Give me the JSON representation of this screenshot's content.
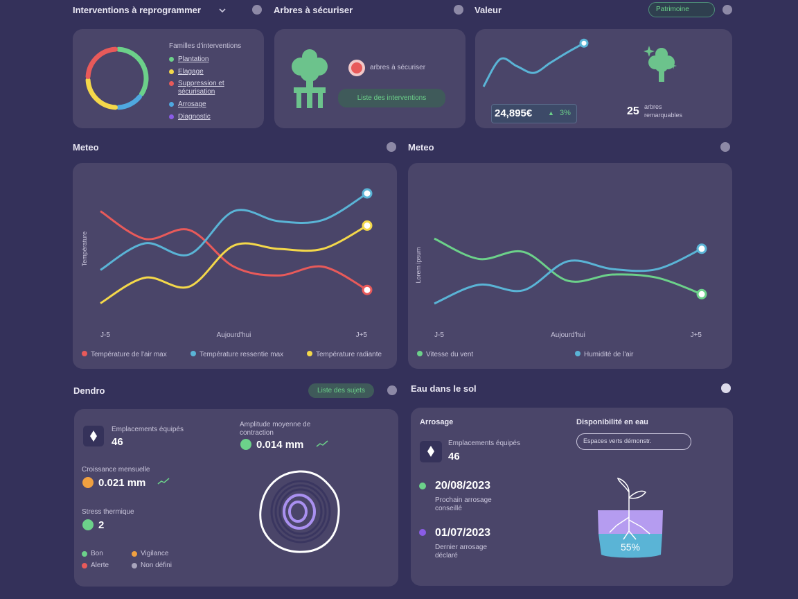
{
  "sections": {
    "interventions": {
      "title": "Interventions à reprogrammer",
      "legend_title": "Familles d'interventions"
    },
    "arbres": {
      "title": "Arbres à sécuriser",
      "label": "arbres à sécuriser",
      "button": "Liste des interventions"
    },
    "valeur": {
      "title": "Valeur",
      "dropdown": "Patrimoine",
      "amount": "24,895€",
      "change": "3%",
      "count": "25",
      "count_label": "arbres remarquables"
    },
    "meteo_left": {
      "title": "Meteo"
    },
    "meteo_right": {
      "title": "Meteo"
    },
    "dendro": {
      "title": "Dendro",
      "button": "Liste des sujets",
      "equipped_label": "Emplacements équipés",
      "equipped": "46",
      "amplitude_label": "Amplitude moyenne de contraction",
      "amplitude": "0.014 mm",
      "growth_label": "Croissance mensuelle",
      "growth": "0.021 mm",
      "stress_label": "Stress thermique",
      "stress": "2",
      "legend": [
        "Bon",
        "Vigilance",
        "Alerte",
        "Non défini"
      ]
    },
    "eau": {
      "title": "Eau dans le sol",
      "watering_title": "Arrosage",
      "availability_title": "Disponibilité en eau",
      "chip": "Espaces verts démonstr.",
      "equipped_label": "Emplacements équipés",
      "equipped": "46",
      "next_date": "20/08/2023",
      "next_label": "Prochain arrosage conseillé",
      "last_date": "01/07/2023",
      "last_label": "Dernier arrosage déclaré",
      "availability": "55%"
    }
  },
  "chart_data": [
    {
      "type": "pie",
      "categories": [
        "Plantation",
        "Elagage",
        "Suppression et sécurisation",
        "Arrosage",
        "Diagnostic"
      ],
      "values": [
        35,
        25,
        25,
        15,
        0
      ],
      "colors": [
        "#6cd18a",
        "#f4d84a",
        "#e85a5a",
        "#4fa8e0",
        "#8a5ce6"
      ]
    },
    {
      "type": "line",
      "categories": [
        null,
        null,
        null,
        null,
        null,
        null,
        null
      ],
      "ylim": [
        0,
        100
      ],
      "series": [
        {
          "color": "#5ab4d6",
          "values": [
            0,
            62,
            46,
            31,
            54,
            77,
            98
          ]
        }
      ]
    },
    {
      "type": "line",
      "y_label": "Température",
      "ylim": [
        0,
        100
      ],
      "categories": [
        "J-5",
        null,
        null,
        "Aujourd'hui",
        null,
        null,
        "J+5"
      ],
      "series": [
        {
          "name": "Température de l'air max",
          "color": "#e85a5a",
          "values": [
            84,
            59,
            67,
            34,
            26,
            34,
            13
          ]
        },
        {
          "name": "Température ressentie max",
          "color": "#5ab4d6",
          "values": [
            31,
            55,
            45,
            84,
            75,
            76,
            100
          ]
        },
        {
          "name": "Température radiante",
          "color": "#f4d84a",
          "values": [
            1,
            24,
            16,
            53,
            50,
            50,
            71
          ]
        }
      ]
    },
    {
      "type": "line",
      "y_label": "Lorem ipsum",
      "ylim": [
        0,
        100
      ],
      "categories": [
        "J-5",
        null,
        null,
        "Aujourd'hui",
        null,
        null,
        "J+5"
      ],
      "series": [
        {
          "name": "Vitesse du vent",
          "color": "#6cd18a",
          "values": [
            84,
            58,
            67,
            30,
            38,
            34,
            13
          ]
        },
        {
          "name": "Humidité de l'air",
          "color": "#5ab4d6",
          "values": [
            1,
            25,
            18,
            55,
            45,
            45,
            71
          ]
        }
      ]
    }
  ]
}
